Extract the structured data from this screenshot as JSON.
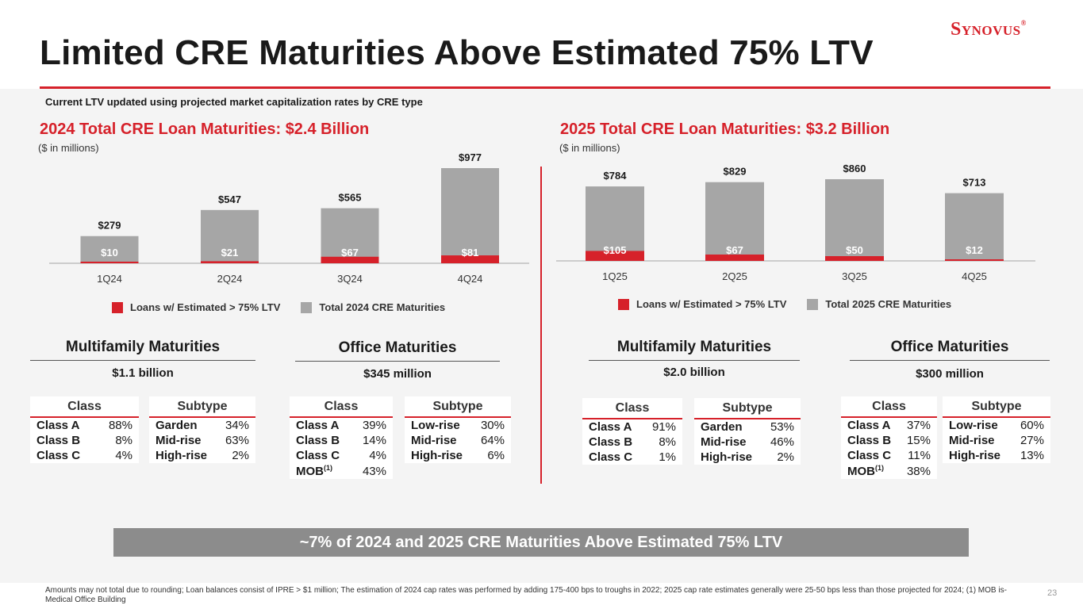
{
  "title": "Limited CRE Maturities Above Estimated 75% LTV",
  "logo": {
    "text": "Synovus",
    "mark": "®"
  },
  "subheading": "Current LTV updated using projected market capitalization rates by CRE type",
  "colors": {
    "red": "#d6212a",
    "gray": "#a6a6a6",
    "banner": "#8c8c8c"
  },
  "panels": [
    {
      "title": "2024 Total CRE Loan Maturities: $2.4 Billion",
      "units": "($ in millions)",
      "legend": {
        "red": "Loans w/ Estimated > 75% LTV",
        "gray": "Total 2024 CRE Maturities"
      }
    },
    {
      "title": "2025 Total CRE Loan Maturities: $3.2 Billion",
      "units": "($ in millions)",
      "legend": {
        "red": "Loans w/ Estimated > 75% LTV",
        "gray": "Total 2025 CRE Maturities"
      }
    }
  ],
  "chart_data": [
    {
      "type": "bar",
      "title": "2024 Total CRE Loan Maturities: $2.4 Billion",
      "ylabel": "($ in millions)",
      "categories": [
        "1Q24",
        "2Q24",
        "3Q24",
        "4Q24"
      ],
      "series": [
        {
          "name": "Total 2024 CRE Maturities",
          "values": [
            279,
            547,
            565,
            977
          ],
          "labels": [
            "$279",
            "$547",
            "$565",
            "$977"
          ],
          "color": "#a6a6a6"
        },
        {
          "name": "Loans w/ Estimated > 75% LTV",
          "values": [
            10,
            21,
            67,
            81
          ],
          "labels": [
            "$10",
            "$21",
            "$67",
            "$81"
          ],
          "color": "#d6212a"
        }
      ],
      "ylim": [
        0,
        977
      ],
      "grid": false,
      "legend_position": "bottom"
    },
    {
      "type": "bar",
      "title": "2025 Total CRE Loan Maturities: $3.2 Billion",
      "ylabel": "($ in millions)",
      "categories": [
        "1Q25",
        "2Q25",
        "3Q25",
        "4Q25"
      ],
      "series": [
        {
          "name": "Total 2025 CRE Maturities",
          "values": [
            784,
            829,
            860,
            713
          ],
          "labels": [
            "$784",
            "$829",
            "$860",
            "$713"
          ],
          "color": "#a6a6a6"
        },
        {
          "name": "Loans w/ Estimated > 75% LTV",
          "values": [
            105,
            67,
            50,
            12
          ],
          "labels": [
            "$105",
            "$67",
            "$50",
            "$12"
          ],
          "color": "#d6212a"
        }
      ],
      "ylim": [
        0,
        860
      ],
      "grid": false,
      "legend_position": "bottom"
    }
  ],
  "sections": [
    {
      "title": "Multifamily Maturities",
      "total": "$1.1 billion",
      "class_table": {
        "header": "Class",
        "rows": [
          [
            "Class A",
            "88%"
          ],
          [
            "Class B",
            "8%"
          ],
          [
            "Class C",
            "4%"
          ]
        ]
      },
      "subtype_table": {
        "header": "Subtype",
        "rows": [
          [
            "Garden",
            "34%"
          ],
          [
            "Mid-rise",
            "63%"
          ],
          [
            "High-rise",
            "2%"
          ]
        ]
      }
    },
    {
      "title": "Office Maturities",
      "total": "$345 million",
      "class_table": {
        "header": "Class",
        "rows": [
          [
            "Class A",
            "39%"
          ],
          [
            "Class B",
            "14%"
          ],
          [
            "Class C",
            "4%"
          ],
          [
            "MOB",
            "43%",
            "(1)"
          ]
        ]
      },
      "subtype_table": {
        "header": "Subtype",
        "rows": [
          [
            "Low-rise",
            "30%"
          ],
          [
            "Mid-rise",
            "64%"
          ],
          [
            "High-rise",
            "6%"
          ]
        ]
      }
    },
    {
      "title": "Multifamily Maturities",
      "total": "$2.0 billion",
      "class_table": {
        "header": "Class",
        "rows": [
          [
            "Class A",
            "91%"
          ],
          [
            "Class B",
            "8%"
          ],
          [
            "Class C",
            "1%"
          ]
        ]
      },
      "subtype_table": {
        "header": "Subtype",
        "rows": [
          [
            "Garden",
            "53%"
          ],
          [
            "Mid-rise",
            "46%"
          ],
          [
            "High-rise",
            "2%"
          ]
        ]
      }
    },
    {
      "title": "Office Maturities",
      "total": "$300 million",
      "class_table": {
        "header": "Class",
        "rows": [
          [
            "Class A",
            "37%"
          ],
          [
            "Class B",
            "15%"
          ],
          [
            "Class C",
            "11%"
          ],
          [
            "MOB",
            "38%",
            "(1)"
          ]
        ]
      },
      "subtype_table": {
        "header": "Subtype",
        "rows": [
          [
            "Low-rise",
            "60%"
          ],
          [
            "Mid-rise",
            "27%"
          ],
          [
            "High-rise",
            "13%"
          ]
        ]
      }
    }
  ],
  "banner": "~7% of 2024 and 2025 CRE Maturities Above Estimated 75% LTV",
  "footnote": "Amounts may not total due to rounding; Loan balances consist of IPRE > $1 million; The estimation of 2024 cap rates was performed by adding 175-400 bps to troughs in 2022; 2025 cap rate estimates generally were 25-50 bps less than those projected for 2024; (1) MOB is-Medical Office Building",
  "page_number": "23"
}
